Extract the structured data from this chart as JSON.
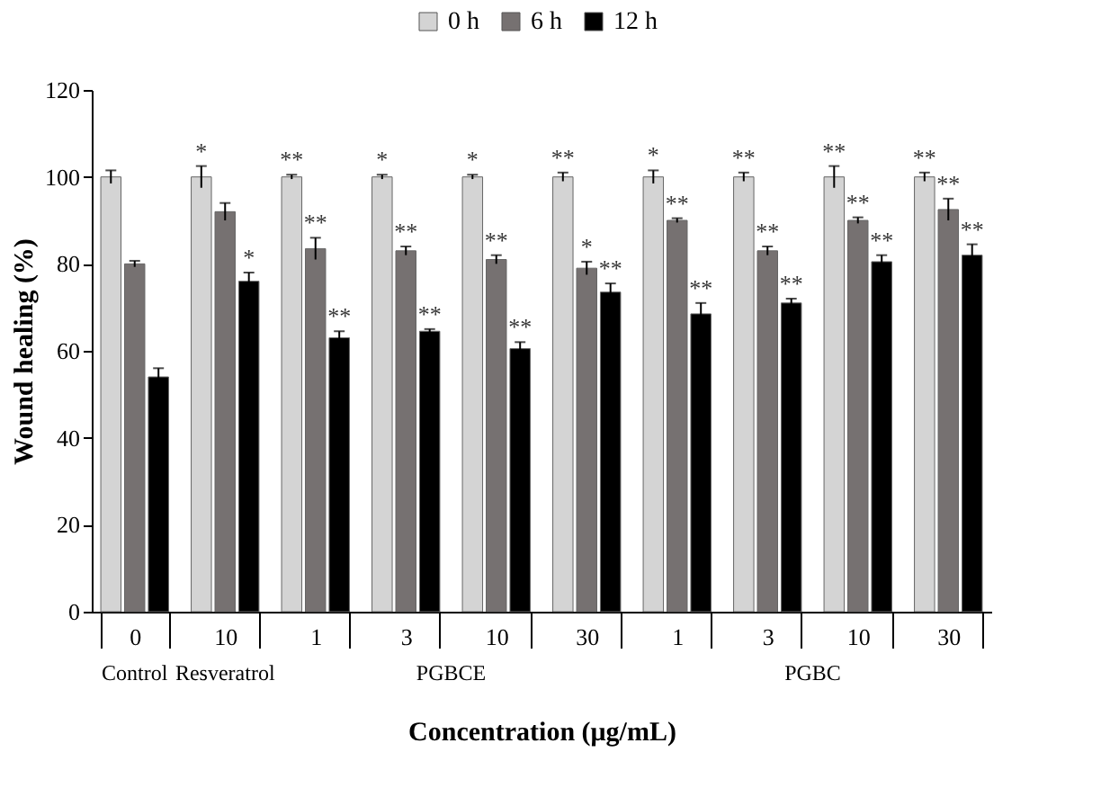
{
  "chart_data": {
    "type": "bar",
    "xlabel": "Concentration (μg/mL)",
    "ylabel": "Wound healing (%)",
    "categories": [
      "0",
      "10",
      "1",
      "3",
      "10",
      "30",
      "1",
      "3",
      "10",
      "30"
    ],
    "series": [
      {
        "name": "0 h",
        "color": "#d4d4d4",
        "values": [
          100,
          100,
          100,
          100,
          100,
          100,
          100,
          100,
          100,
          100
        ],
        "errors": [
          1.5,
          2.5,
          0.5,
          0.5,
          0.5,
          1,
          1.5,
          1,
          2.5,
          1
        ],
        "value_labels": [
          null,
          "*",
          "**",
          "*",
          "*",
          "**",
          "*",
          "**",
          "**",
          "**"
        ]
      },
      {
        "name": "6 h",
        "color": "#767171",
        "values": [
          80,
          92,
          83.5,
          83,
          81,
          79,
          90,
          83,
          90,
          92.5
        ],
        "errors": [
          0.7,
          2,
          2.5,
          1,
          1,
          1.5,
          0.5,
          1,
          0.7,
          2.5
        ],
        "value_labels": [
          null,
          null,
          "**",
          "**",
          "**",
          "*",
          "**",
          "**",
          "**",
          "**"
        ]
      },
      {
        "name": "12 h",
        "color": "#000000",
        "values": [
          54,
          76,
          63,
          64.5,
          60.5,
          73.5,
          68.5,
          71,
          80.5,
          82
        ],
        "errors": [
          2,
          2,
          1.5,
          0.5,
          1.5,
          2,
          2.5,
          1,
          1.5,
          2.5
        ],
        "value_labels": [
          null,
          "*",
          "**",
          "**",
          "**",
          "**",
          "**",
          "**",
          "**",
          "**"
        ]
      }
    ],
    "annotations": [
      "Control",
      "Resveratrol",
      "PGBCE",
      "PGBC"
    ],
    "ylim": [
      0,
      120
    ],
    "yticks": [
      0,
      20,
      40,
      60,
      80,
      100,
      120
    ],
    "grid": false,
    "legend": "top"
  }
}
